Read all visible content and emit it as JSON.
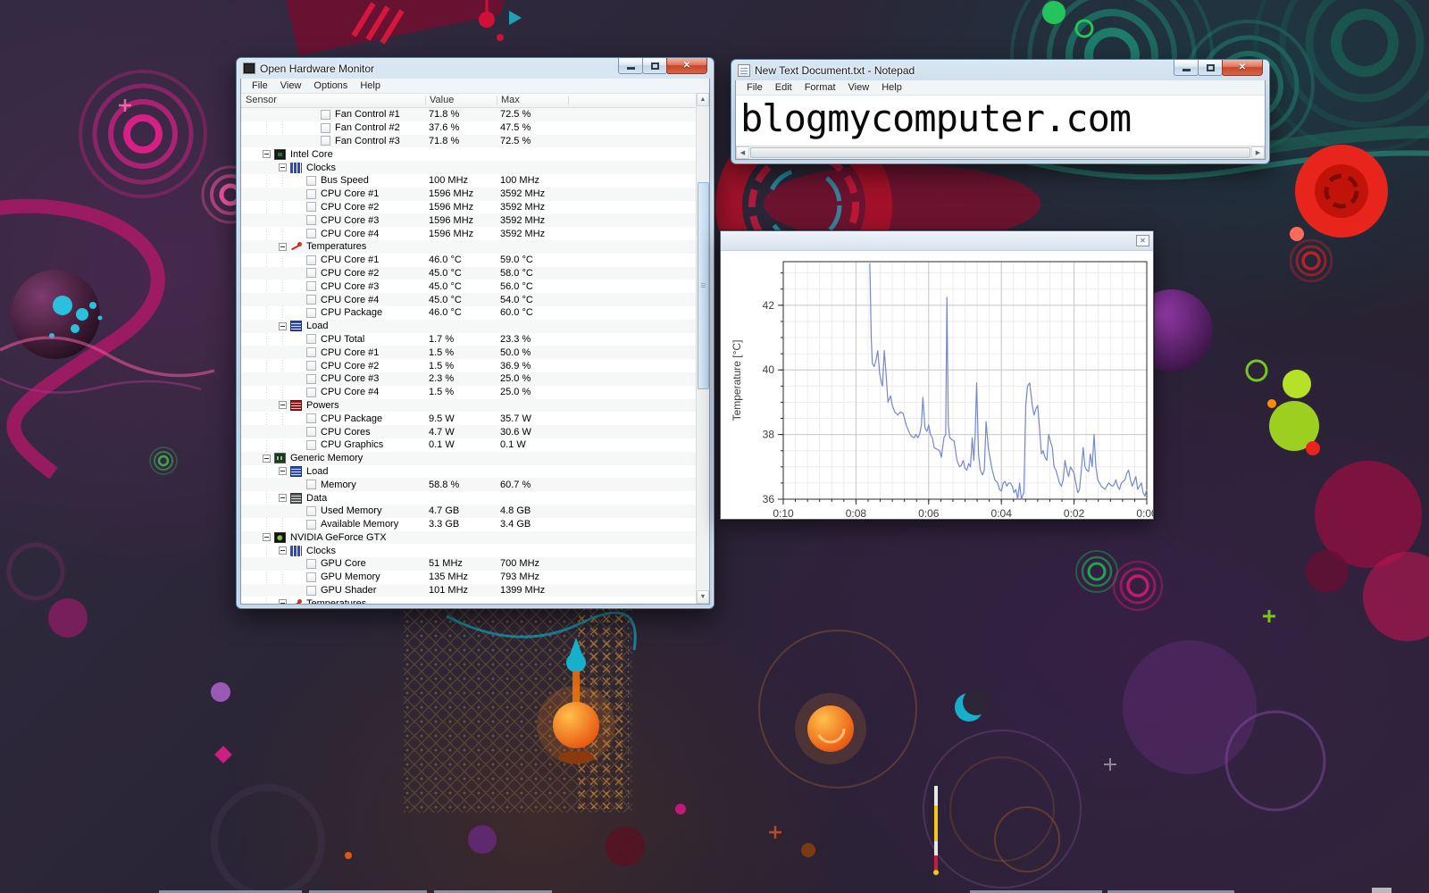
{
  "colors": {
    "aero_frame": "#bcd3e6",
    "close_button_red": "#c6472b",
    "chart_line": "#7488cf",
    "desktop_base": "#2a2536"
  },
  "ohm": {
    "title": "Open Hardware Monitor",
    "menus": [
      "File",
      "View",
      "Options",
      "Help"
    ],
    "columns": {
      "sensor": "Sensor",
      "value": "Value",
      "max": "Max"
    },
    "rows": [
      {
        "i": 3,
        "t": "leaf",
        "icon": "",
        "label": "Fan Control #1",
        "value": "71.8 %",
        "max": "72.5 %"
      },
      {
        "i": 3,
        "t": "leaf",
        "icon": "",
        "label": "Fan Control #2",
        "value": "37.6 %",
        "max": "47.5 %"
      },
      {
        "i": 3,
        "t": "leaf",
        "icon": "",
        "label": "Fan Control #3",
        "value": "71.8 %",
        "max": "72.5 %"
      },
      {
        "i": 0,
        "t": "node",
        "icon": "chip",
        "label": "Intel Core",
        "value": "",
        "max": ""
      },
      {
        "i": 1,
        "t": "node",
        "icon": "clocks",
        "label": "Clocks",
        "value": "",
        "max": ""
      },
      {
        "i": 2,
        "t": "leaf",
        "icon": "",
        "label": "Bus Speed",
        "value": "100 MHz",
        "max": "100 MHz"
      },
      {
        "i": 2,
        "t": "leaf",
        "icon": "",
        "label": "CPU Core #1",
        "value": "1596 MHz",
        "max": "3592 MHz"
      },
      {
        "i": 2,
        "t": "leaf",
        "icon": "",
        "label": "CPU Core #2",
        "value": "1596 MHz",
        "max": "3592 MHz"
      },
      {
        "i": 2,
        "t": "leaf",
        "icon": "",
        "label": "CPU Core #3",
        "value": "1596 MHz",
        "max": "3592 MHz"
      },
      {
        "i": 2,
        "t": "leaf",
        "icon": "",
        "label": "CPU Core #4",
        "value": "1596 MHz",
        "max": "3592 MHz"
      },
      {
        "i": 1,
        "t": "node",
        "icon": "temp",
        "label": "Temperatures",
        "value": "",
        "max": ""
      },
      {
        "i": 2,
        "t": "leaf",
        "icon": "",
        "label": "CPU Core #1",
        "value": "46.0 °C",
        "max": "59.0 °C"
      },
      {
        "i": 2,
        "t": "leaf",
        "icon": "",
        "label": "CPU Core #2",
        "value": "45.0 °C",
        "max": "58.0 °C"
      },
      {
        "i": 2,
        "t": "leaf",
        "icon": "",
        "label": "CPU Core #3",
        "value": "45.0 °C",
        "max": "56.0 °C"
      },
      {
        "i": 2,
        "t": "leaf",
        "icon": "",
        "label": "CPU Core #4",
        "value": "45.0 °C",
        "max": "54.0 °C"
      },
      {
        "i": 2,
        "t": "leaf",
        "icon": "",
        "label": "CPU Package",
        "value": "46.0 °C",
        "max": "60.0 °C"
      },
      {
        "i": 1,
        "t": "node",
        "icon": "load",
        "label": "Load",
        "value": "",
        "max": ""
      },
      {
        "i": 2,
        "t": "leaf",
        "icon": "",
        "label": "CPU Total",
        "value": "1.7 %",
        "max": "23.3 %"
      },
      {
        "i": 2,
        "t": "leaf",
        "icon": "",
        "label": "CPU Core #1",
        "value": "1.5 %",
        "max": "50.0 %"
      },
      {
        "i": 2,
        "t": "leaf",
        "icon": "",
        "label": "CPU Core #2",
        "value": "1.5 %",
        "max": "36.9 %"
      },
      {
        "i": 2,
        "t": "leaf",
        "icon": "",
        "label": "CPU Core #3",
        "value": "2.3 %",
        "max": "25.0 %"
      },
      {
        "i": 2,
        "t": "leaf",
        "icon": "",
        "label": "CPU Core #4",
        "value": "1.5 %",
        "max": "25.0 %"
      },
      {
        "i": 1,
        "t": "node",
        "icon": "power",
        "label": "Powers",
        "value": "",
        "max": ""
      },
      {
        "i": 2,
        "t": "leaf",
        "icon": "",
        "label": "CPU Package",
        "value": "9.5 W",
        "max": "35.7 W"
      },
      {
        "i": 2,
        "t": "leaf",
        "icon": "",
        "label": "CPU Cores",
        "value": "4.7 W",
        "max": "30.6 W"
      },
      {
        "i": 2,
        "t": "leaf",
        "icon": "",
        "label": "CPU Graphics",
        "value": "0.1 W",
        "max": "0.1 W"
      },
      {
        "i": 0,
        "t": "node",
        "icon": "ram",
        "label": "Generic Memory",
        "value": "",
        "max": ""
      },
      {
        "i": 1,
        "t": "node",
        "icon": "load",
        "label": "Load",
        "value": "",
        "max": ""
      },
      {
        "i": 2,
        "t": "leaf",
        "icon": "",
        "label": "Memory",
        "value": "58.8 %",
        "max": "60.7 %"
      },
      {
        "i": 1,
        "t": "node",
        "icon": "data",
        "label": "Data",
        "value": "",
        "max": ""
      },
      {
        "i": 2,
        "t": "leaf",
        "icon": "",
        "label": "Used Memory",
        "value": "4.7 GB",
        "max": "4.8 GB"
      },
      {
        "i": 2,
        "t": "leaf",
        "icon": "",
        "label": "Available Memory",
        "value": "3.3 GB",
        "max": "3.4 GB"
      },
      {
        "i": 0,
        "t": "node",
        "icon": "gpu",
        "label": "NVIDIA GeForce  GTX",
        "value": "",
        "max": ""
      },
      {
        "i": 1,
        "t": "node",
        "icon": "clocks",
        "label": "Clocks",
        "value": "",
        "max": ""
      },
      {
        "i": 2,
        "t": "leaf",
        "icon": "",
        "label": "GPU Core",
        "value": "51 MHz",
        "max": "700 MHz"
      },
      {
        "i": 2,
        "t": "leaf",
        "icon": "",
        "label": "GPU Memory",
        "value": "135 MHz",
        "max": "793 MHz"
      },
      {
        "i": 2,
        "t": "leaf",
        "icon": "",
        "label": "GPU Shader",
        "value": "101 MHz",
        "max": "1399 MHz"
      },
      {
        "i": 1,
        "t": "node",
        "icon": "temp",
        "label": "Temperatures",
        "value": "",
        "max": ""
      }
    ]
  },
  "notepad": {
    "title": "New Text Document.txt - Notepad",
    "menus": [
      "File",
      "Edit",
      "Format",
      "View",
      "Help"
    ],
    "content": "blogmycomputer.com"
  },
  "chart_data": {
    "type": "line",
    "title": "",
    "xlabel": "",
    "ylabel": "Temperature [°C]",
    "x_tick_labels": [
      "0:10",
      "0:08",
      "0:06",
      "0:04",
      "0:02",
      "0:00"
    ],
    "x_tick_values": [
      10,
      8,
      6,
      4,
      2,
      0
    ],
    "xlim": [
      10,
      0
    ],
    "ylim": [
      36,
      43.35
    ],
    "yticks": [
      36,
      38,
      40,
      42
    ],
    "minor_x_step": 0.3333,
    "minor_y_step": 0.5,
    "grid": true,
    "legend_position": "none",
    "line_color": "#7488cf",
    "series": [
      {
        "name": "Temperature",
        "points": [
          [
            7.62,
            43.3
          ],
          [
            7.58,
            41.0
          ],
          [
            7.55,
            40.2
          ],
          [
            7.5,
            40.1
          ],
          [
            7.45,
            40.3
          ],
          [
            7.4,
            40.6
          ],
          [
            7.35,
            39.9
          ],
          [
            7.3,
            39.6
          ],
          [
            7.27,
            39.5
          ],
          [
            7.22,
            40.6
          ],
          [
            7.18,
            40.0
          ],
          [
            7.12,
            39.0
          ],
          [
            7.05,
            39.2
          ],
          [
            7.0,
            38.9
          ],
          [
            6.93,
            38.7
          ],
          [
            6.85,
            38.6
          ],
          [
            6.78,
            38.7
          ],
          [
            6.7,
            38.65
          ],
          [
            6.62,
            38.3
          ],
          [
            6.55,
            38.1
          ],
          [
            6.48,
            37.95
          ],
          [
            6.4,
            37.9
          ],
          [
            6.35,
            38.0
          ],
          [
            6.3,
            37.9
          ],
          [
            6.25,
            38.0
          ],
          [
            6.2,
            38.3
          ],
          [
            6.16,
            39.15
          ],
          [
            6.1,
            38.2
          ],
          [
            6.05,
            38.1
          ],
          [
            6.0,
            38.3
          ],
          [
            5.95,
            38.0
          ],
          [
            5.9,
            37.9
          ],
          [
            5.85,
            37.6
          ],
          [
            5.78,
            37.55
          ],
          [
            5.7,
            37.5
          ],
          [
            5.65,
            37.3
          ],
          [
            5.58,
            37.9
          ],
          [
            5.53,
            38.0
          ],
          [
            5.5,
            42.25
          ],
          [
            5.46,
            38.3
          ],
          [
            5.42,
            37.9
          ],
          [
            5.37,
            37.85
          ],
          [
            5.3,
            37.8
          ],
          [
            5.22,
            37.2
          ],
          [
            5.15,
            37.0
          ],
          [
            5.1,
            37.05
          ],
          [
            5.05,
            37.2
          ],
          [
            5.0,
            36.95
          ],
          [
            4.95,
            36.9
          ],
          [
            4.9,
            37.1
          ],
          [
            4.85,
            37.0
          ],
          [
            4.8,
            37.9
          ],
          [
            4.76,
            37.2
          ],
          [
            4.72,
            38.0
          ],
          [
            4.68,
            39.6
          ],
          [
            4.63,
            37.4
          ],
          [
            4.58,
            36.9
          ],
          [
            4.52,
            36.75
          ],
          [
            4.47,
            36.9
          ],
          [
            4.42,
            38.4
          ],
          [
            4.36,
            37.6
          ],
          [
            4.3,
            37.2
          ],
          [
            4.25,
            36.9
          ],
          [
            4.18,
            36.6
          ],
          [
            4.1,
            36.5
          ],
          [
            4.05,
            36.3
          ],
          [
            4.0,
            36.25
          ],
          [
            3.95,
            36.5
          ],
          [
            3.9,
            36.55
          ],
          [
            3.85,
            36.4
          ],
          [
            3.8,
            36.5
          ],
          [
            3.75,
            36.5
          ],
          [
            3.7,
            36.4
          ],
          [
            3.65,
            36.2
          ],
          [
            3.6,
            36.3
          ],
          [
            3.55,
            36.0
          ],
          [
            3.5,
            36.5
          ],
          [
            3.45,
            36.0
          ],
          [
            3.42,
            36.1
          ],
          [
            3.38,
            36.2
          ],
          [
            3.33,
            38.9
          ],
          [
            3.28,
            39.5
          ],
          [
            3.22,
            39.6
          ],
          [
            3.15,
            38.9
          ],
          [
            3.1,
            38.6
          ],
          [
            3.05,
            38.8
          ],
          [
            3.0,
            38.9
          ],
          [
            2.95,
            38.2
          ],
          [
            2.9,
            37.4
          ],
          [
            2.85,
            37.5
          ],
          [
            2.8,
            37.3
          ],
          [
            2.75,
            37.2
          ],
          [
            2.7,
            38.0
          ],
          [
            2.65,
            37.8
          ],
          [
            2.6,
            37.6
          ],
          [
            2.55,
            37.0
          ],
          [
            2.5,
            36.9
          ],
          [
            2.45,
            36.7
          ],
          [
            2.4,
            36.5
          ],
          [
            2.35,
            36.4
          ],
          [
            2.3,
            36.6
          ],
          [
            2.25,
            37.2
          ],
          [
            2.2,
            36.9
          ],
          [
            2.15,
            36.7
          ],
          [
            2.1,
            37.0
          ],
          [
            2.05,
            36.9
          ],
          [
            2.0,
            36.8
          ],
          [
            1.95,
            36.5
          ],
          [
            1.9,
            36.2
          ],
          [
            1.85,
            36.3
          ],
          [
            1.8,
            36.9
          ],
          [
            1.75,
            37.6
          ],
          [
            1.7,
            37.0
          ],
          [
            1.65,
            36.9
          ],
          [
            1.6,
            36.85
          ],
          [
            1.55,
            37.4
          ],
          [
            1.5,
            37.0
          ],
          [
            1.45,
            38.0
          ],
          [
            1.4,
            37.0
          ],
          [
            1.35,
            36.6
          ],
          [
            1.3,
            36.5
          ],
          [
            1.25,
            36.4
          ],
          [
            1.2,
            36.35
          ],
          [
            1.15,
            36.3
          ],
          [
            1.1,
            36.4
          ],
          [
            1.05,
            36.5
          ],
          [
            1.0,
            36.45
          ],
          [
            0.95,
            36.4
          ],
          [
            0.9,
            36.45
          ],
          [
            0.85,
            36.6
          ],
          [
            0.8,
            36.4
          ],
          [
            0.75,
            36.3
          ],
          [
            0.7,
            36.5
          ],
          [
            0.65,
            36.55
          ],
          [
            0.6,
            36.6
          ],
          [
            0.55,
            36.8
          ],
          [
            0.5,
            36.9
          ],
          [
            0.45,
            36.6
          ],
          [
            0.4,
            36.4
          ],
          [
            0.35,
            36.55
          ],
          [
            0.3,
            36.7
          ],
          [
            0.25,
            36.3
          ],
          [
            0.2,
            36.4
          ],
          [
            0.15,
            36.5
          ],
          [
            0.1,
            36.2
          ],
          [
            0.05,
            36.1
          ],
          [
            0.0,
            36.3
          ]
        ]
      }
    ]
  }
}
